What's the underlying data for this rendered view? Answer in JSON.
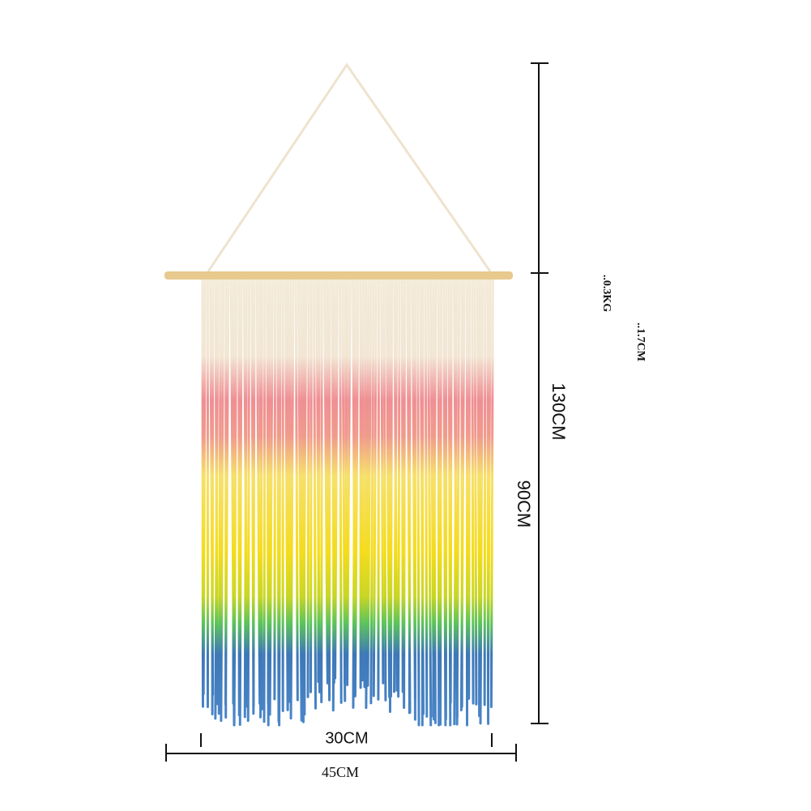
{
  "dimensions": {
    "total_height": "130CM",
    "fringe_length": "90CM",
    "weight": "..0.3KG",
    "rod_diameter": "..1.7CM",
    "hanging_width": "30CM",
    "rod_width": "45CM"
  }
}
